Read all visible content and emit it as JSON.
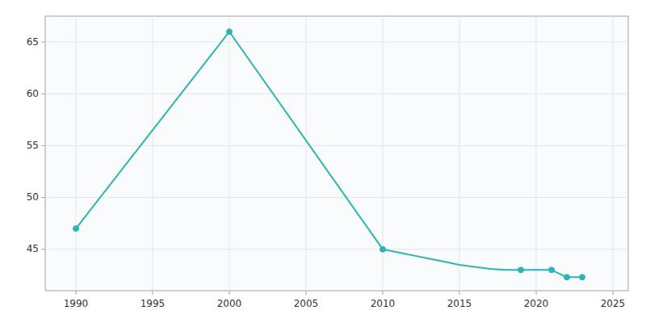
{
  "chart_data": {
    "type": "line",
    "series": [
      {
        "type": "line",
        "color": "#2ab5b5",
        "x": [
          1990,
          2000,
          2010,
          2011,
          2012,
          2013,
          2014,
          2015,
          2016,
          2017,
          2018,
          2019,
          2020,
          2021,
          2022,
          2023
        ],
        "values": [
          47,
          66,
          45,
          44.7,
          44.4,
          44.1,
          43.8,
          43.5,
          43.3,
          43.1,
          43.0,
          43.0,
          43.0,
          43.0,
          42.3,
          42.3
        ]
      },
      {
        "type": "scatter",
        "color": "#2ab5b5",
        "marker": "circle",
        "x": [
          1990,
          2000,
          2010,
          2019,
          2021,
          2022,
          2023
        ],
        "values": [
          47,
          66,
          45,
          43.0,
          43.0,
          42.3,
          42.3
        ]
      }
    ],
    "xlim": [
      1988,
      2026
    ],
    "ylim": [
      41.0,
      67.5
    ],
    "xticks": [
      1990,
      1995,
      2000,
      2005,
      2010,
      2015,
      2020,
      2025
    ],
    "yticks": [
      45,
      50,
      55,
      60,
      65
    ],
    "grid": true
  }
}
